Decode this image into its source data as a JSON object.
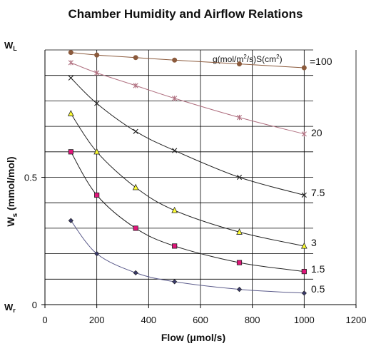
{
  "chart_data": {
    "type": "line",
    "title": "Chamber Humidity and Airflow Relations",
    "xlabel": "Flow (μmol/s)",
    "ylabel_main": "W",
    "ylabel_sub": "s",
    "ylabel_unit": " (mmol/mol)",
    "xlim": [
      0,
      1200
    ],
    "ylim": [
      0,
      1.0
    ],
    "x_ticks": [
      0,
      200,
      400,
      600,
      800,
      1000,
      1200
    ],
    "y_ticks": [
      {
        "value": 0,
        "label": "0"
      },
      {
        "value": 0.5,
        "label": "0.5"
      }
    ],
    "y_special_labels": [
      {
        "value": 0,
        "main": "W",
        "sub": "r"
      },
      {
        "value": 1.0,
        "main": "W",
        "sub": "L"
      }
    ],
    "grid": true,
    "legend_header": {
      "a": "g(mol/m",
      "b": "2",
      "c": "/s)S(cm",
      "d": "2",
      "e": ")"
    },
    "series": [
      {
        "name": "=100",
        "color": "#8b5a3c",
        "marker": "circle",
        "x": [
          100,
          200,
          350,
          500,
          750,
          1000
        ],
        "y": [
          0.99,
          0.98,
          0.97,
          0.96,
          0.945,
          0.93
        ]
      },
      {
        "name": "20",
        "color": "#b07080",
        "marker": "star",
        "x": [
          100,
          200,
          350,
          500,
          750,
          1000
        ],
        "y": [
          0.95,
          0.91,
          0.86,
          0.81,
          0.735,
          0.67
        ]
      },
      {
        "name": "7.5",
        "color": "#222222",
        "marker": "x",
        "x": [
          100,
          200,
          350,
          500,
          750,
          1000
        ],
        "y": [
          0.89,
          0.79,
          0.68,
          0.605,
          0.5,
          0.43
        ]
      },
      {
        "name": "3",
        "color": "#222222",
        "marker": "triangle",
        "x": [
          100,
          200,
          350,
          500,
          750,
          1000
        ],
        "y": [
          0.75,
          0.6,
          0.46,
          0.37,
          0.285,
          0.23
        ]
      },
      {
        "name": "1.5",
        "color": "#222222",
        "marker": "square",
        "x": [
          100,
          200,
          350,
          500,
          750,
          1000
        ],
        "y": [
          0.6,
          0.43,
          0.3,
          0.23,
          0.165,
          0.13
        ]
      },
      {
        "name": "0.5",
        "color": "#5a5a8a",
        "marker": "diamond",
        "x": [
          100,
          200,
          350,
          500,
          750,
          1000
        ],
        "y": [
          0.33,
          0.2,
          0.125,
          0.09,
          0.06,
          0.045
        ]
      }
    ],
    "marker_fills": {
      "circle": "#8b5a3c",
      "star": "#b07080",
      "x": "#222222",
      "triangle": "#ffff33",
      "square": "#e0157a",
      "diamond": "#3a3a6a"
    }
  }
}
